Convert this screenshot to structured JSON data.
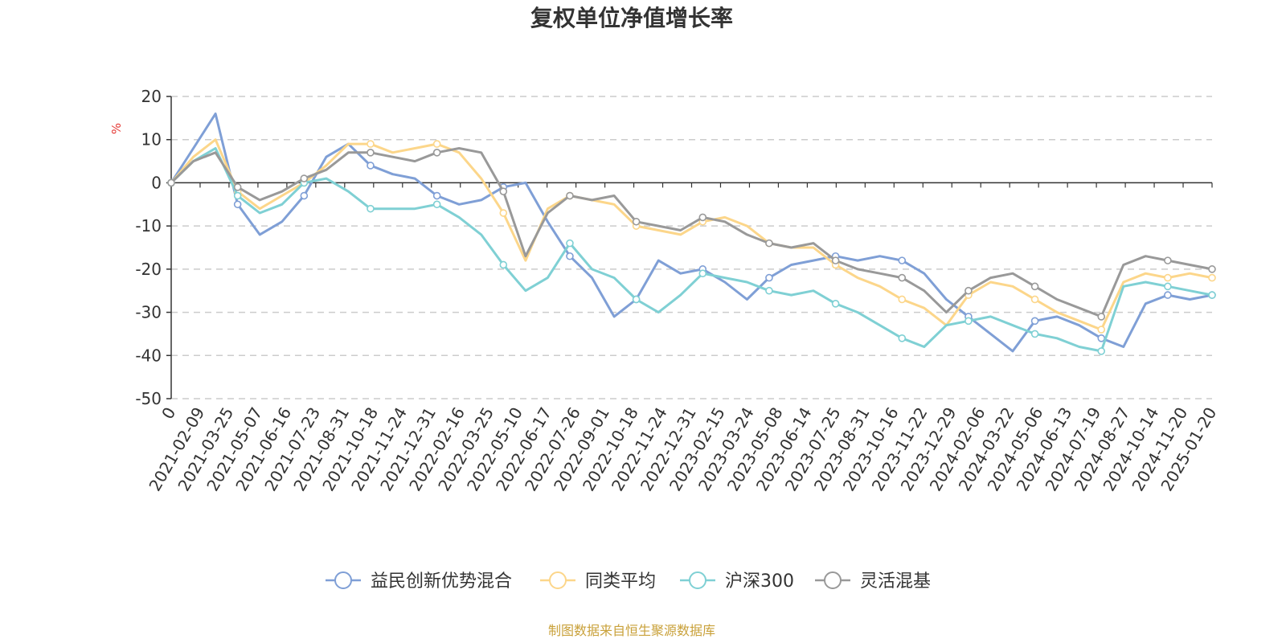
{
  "chart_data": {
    "type": "line",
    "title": "复权单位净值增长率",
    "ylabel": "%",
    "ylim": [
      -50,
      20
    ],
    "yticks": [
      20,
      10,
      0,
      -10,
      -20,
      -30,
      -40,
      -50
    ],
    "x_tick_labels": [
      "0",
      "2021-02-09",
      "2021-03-25",
      "2021-05-07",
      "2021-06-16",
      "2021-07-23",
      "2021-08-31",
      "2021-10-18",
      "2021-11-24",
      "2021-12-31",
      "2022-02-16",
      "2022-03-25",
      "2022-05-10",
      "2022-06-17",
      "2022-07-26",
      "2022-09-01",
      "2022-10-18",
      "2022-11-24",
      "2022-12-31",
      "2023-02-15",
      "2023-03-24",
      "2023-05-08",
      "2023-06-14",
      "2023-07-25",
      "2023-08-31",
      "2023-10-16",
      "2023-11-22",
      "2023-12-29",
      "2024-02-06",
      "2024-03-22",
      "2024-05-06",
      "2024-06-13",
      "2024-07-19",
      "2024-08-27",
      "2024-10-14",
      "2024-11-20",
      "2025-01-20"
    ],
    "grid": true,
    "legend_position": "bottom",
    "series": [
      {
        "name": "益民创新优势混合",
        "color": "#7f9fd6",
        "values": [
          0,
          8,
          16,
          -5,
          -12,
          -9,
          -3,
          6,
          9,
          4,
          2,
          1,
          -3,
          -5,
          -4,
          -1,
          0,
          -9,
          -17,
          -22,
          -31,
          -27,
          -18,
          -21,
          -20,
          -23,
          -27,
          -22,
          -19,
          -18,
          -17,
          -18,
          -17,
          -18,
          -21,
          -27,
          -31,
          -35,
          -39,
          -32,
          -31,
          -33,
          -36,
          -38,
          -28,
          -26,
          -27,
          -26
        ]
      },
      {
        "name": "同类平均",
        "color": "#fcd68a",
        "values": [
          0,
          6,
          10,
          -2,
          -6,
          -3,
          0,
          4,
          9,
          9,
          7,
          8,
          9,
          7,
          1,
          -7,
          -18,
          -6,
          -3,
          -4,
          -5,
          -10,
          -11,
          -12,
          -9,
          -8,
          -10,
          -14,
          -15,
          -15,
          -19,
          -22,
          -24,
          -27,
          -29,
          -33,
          -26,
          -23,
          -24,
          -27,
          -30,
          -32,
          -34,
          -23,
          -21,
          -22,
          -21,
          -22
        ]
      },
      {
        "name": "沪深300",
        "color": "#7fd0d4",
        "values": [
          0,
          5,
          8,
          -3,
          -7,
          -5,
          0,
          1,
          -2,
          -6,
          -6,
          -6,
          -5,
          -8,
          -12,
          -19,
          -25,
          -22,
          -14,
          -20,
          -22,
          -27,
          -30,
          -26,
          -21,
          -22,
          -23,
          -25,
          -26,
          -25,
          -28,
          -30,
          -33,
          -36,
          -38,
          -33,
          -32,
          -31,
          -33,
          -35,
          -36,
          -38,
          -39,
          -24,
          -23,
          -24,
          -25,
          -26
        ]
      },
      {
        "name": "灵活混基",
        "color": "#999999",
        "values": [
          0,
          5,
          7,
          -1,
          -4,
          -2,
          1,
          3,
          7,
          7,
          6,
          5,
          7,
          8,
          7,
          -2,
          -17,
          -7,
          -3,
          -4,
          -3,
          -9,
          -10,
          -11,
          -8,
          -9,
          -12,
          -14,
          -15,
          -14,
          -18,
          -20,
          -21,
          -22,
          -25,
          -30,
          -25,
          -22,
          -21,
          -24,
          -27,
          -29,
          -31,
          -19,
          -17,
          -18,
          -19,
          -20
        ]
      }
    ]
  },
  "source_note": "制图数据来自恒生聚源数据库"
}
